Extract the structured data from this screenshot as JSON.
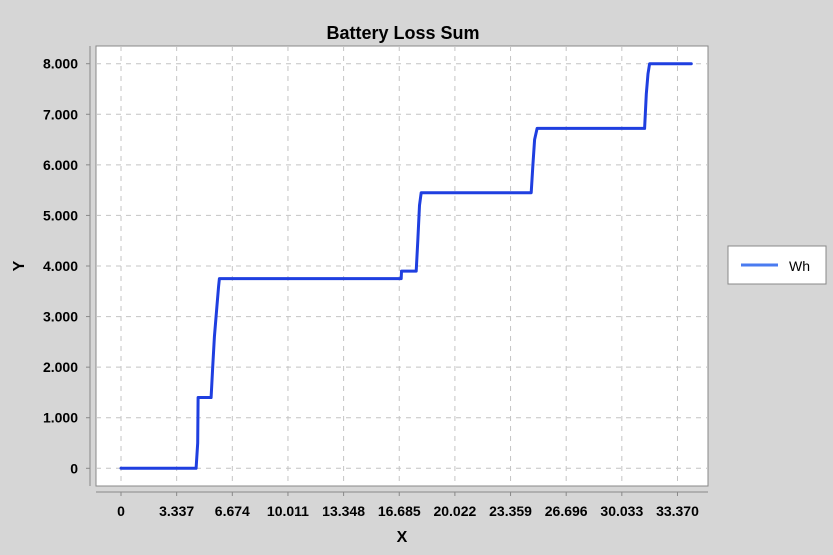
{
  "chart_data": {
    "type": "line",
    "title": "Battery Loss Sum",
    "xlabel": "X",
    "ylabel": "Y",
    "xlim": [
      -1.5,
      35.2
    ],
    "ylim": [
      -0.35,
      8.35
    ],
    "x_ticks": [
      0,
      3.337,
      6.674,
      10.011,
      13.348,
      16.685,
      20.022,
      23.359,
      26.696,
      30.033,
      33.37
    ],
    "x_tick_labels": [
      "0",
      "3.337",
      "6.674",
      "10.011",
      "13.348",
      "16.685",
      "20.022",
      "23.359",
      "26.696",
      "30.033",
      "33.370"
    ],
    "y_ticks": [
      0,
      1,
      2,
      3,
      4,
      5,
      6,
      7,
      8
    ],
    "y_tick_labels": [
      "0",
      "1.000",
      "2.000",
      "3.000",
      "4.000",
      "5.000",
      "6.000",
      "7.000",
      "8.000"
    ],
    "grid": true,
    "legend_position": "right",
    "series": [
      {
        "name": "Wh",
        "color": "#1f3fe0",
        "x": [
          0,
          4.5,
          4.6,
          4.62,
          4.7,
          5.4,
          5.5,
          5.6,
          5.75,
          5.85,
          5.9,
          6.0,
          16.8,
          16.82,
          17.7,
          17.8,
          17.9,
          18.0,
          24.6,
          24.7,
          24.8,
          24.95,
          25.0,
          31.4,
          31.5,
          31.6,
          31.7,
          31.8,
          34.2
        ],
        "y": [
          0,
          0,
          0.5,
          1.4,
          1.4,
          1.4,
          2.0,
          2.6,
          3.2,
          3.6,
          3.75,
          3.75,
          3.75,
          3.9,
          3.9,
          4.5,
          5.2,
          5.45,
          5.45,
          6.0,
          6.5,
          6.72,
          6.72,
          6.72,
          7.4,
          7.8,
          8.0,
          8.0,
          8.0
        ]
      }
    ]
  },
  "colors": {
    "background": "#d6d6d6",
    "plot_background": "#ffffff",
    "grid": "#c4c4c4",
    "line": "#1f3fe0",
    "legend_line": "#4a7bf0"
  }
}
